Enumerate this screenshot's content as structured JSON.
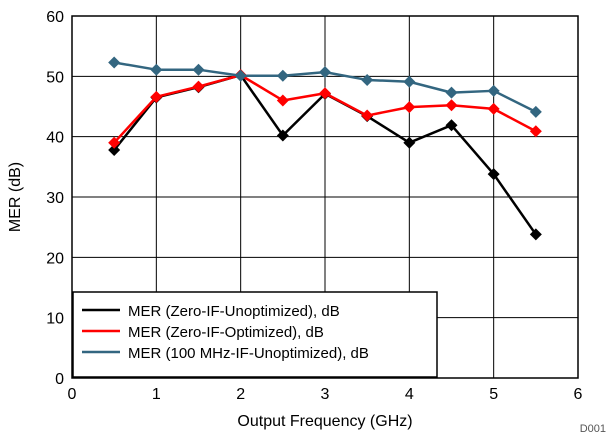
{
  "chart_data": {
    "type": "line",
    "title": "",
    "xlabel": "Output Frequency (GHz)",
    "ylabel": "MER (dB)",
    "xlim": [
      0,
      6
    ],
    "ylim": [
      0,
      60
    ],
    "xticks": [
      0,
      1,
      2,
      3,
      4,
      5,
      6
    ],
    "yticks": [
      0,
      10,
      20,
      30,
      40,
      50,
      60
    ],
    "grid": true,
    "legend_position": "bottom-left",
    "x": [
      0.5,
      1.0,
      1.5,
      2.0,
      2.5,
      3.0,
      3.5,
      4.0,
      4.5,
      5.0,
      5.5
    ],
    "series": [
      {
        "name": "MER (Zero-IF-Unoptimized), dB",
        "color": "#000000",
        "values": [
          37.8,
          46.5,
          48.2,
          50.2,
          40.2,
          47.1,
          43.4,
          39.0,
          41.9,
          33.8,
          23.8
        ]
      },
      {
        "name": "MER (Zero-IF-Optimized), dB",
        "color": "#ff0000",
        "values": [
          39.0,
          46.6,
          48.3,
          50.2,
          46.0,
          47.2,
          43.5,
          44.9,
          45.2,
          44.6,
          40.9
        ]
      },
      {
        "name": "MER (100 MHz-IF-Unoptimized), dB",
        "color": "#336680",
        "values": [
          52.3,
          51.1,
          51.1,
          50.1,
          50.1,
          50.7,
          49.4,
          49.1,
          47.3,
          47.6,
          44.1
        ]
      }
    ],
    "annotation": "D001"
  }
}
